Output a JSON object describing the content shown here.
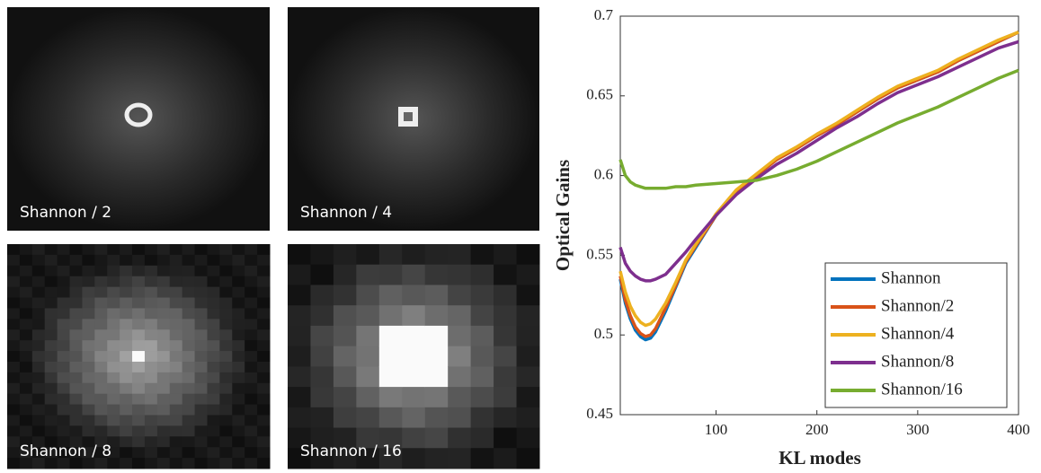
{
  "panels": [
    {
      "label": "Shannon / 2"
    },
    {
      "label": "Shannon / 4"
    },
    {
      "label": "Shannon / 8"
    },
    {
      "label": "Shannon / 16"
    }
  ],
  "chart_data": {
    "type": "line",
    "xlabel": "KL modes",
    "ylabel": "Optical Gains",
    "x": [
      5,
      10,
      15,
      20,
      25,
      30,
      35,
      40,
      50,
      60,
      70,
      80,
      100,
      120,
      140,
      160,
      180,
      200,
      220,
      240,
      260,
      280,
      300,
      320,
      340,
      360,
      380,
      400
    ],
    "xlim": [
      5,
      400
    ],
    "xticks": [
      100,
      200,
      300,
      400
    ],
    "ylim": [
      0.45,
      0.7
    ],
    "yticks": [
      0.45,
      0.5,
      0.55,
      0.6,
      0.65,
      0.7
    ],
    "legend": "lower right",
    "series": [
      {
        "name": "Shannon",
        "color": "#0072bd",
        "values": [
          0.535,
          0.52,
          0.51,
          0.503,
          0.499,
          0.497,
          0.498,
          0.502,
          0.515,
          0.53,
          0.545,
          0.555,
          0.575,
          0.59,
          0.6,
          0.61,
          0.617,
          0.625,
          0.632,
          0.64,
          0.648,
          0.655,
          0.66,
          0.665,
          0.672,
          0.678,
          0.684,
          0.69
        ]
      },
      {
        "name": "Shannon/2",
        "color": "#d95319",
        "values": [
          0.537,
          0.522,
          0.512,
          0.505,
          0.501,
          0.499,
          0.5,
          0.504,
          0.517,
          0.531,
          0.546,
          0.556,
          0.575,
          0.59,
          0.6,
          0.61,
          0.617,
          0.625,
          0.632,
          0.64,
          0.648,
          0.655,
          0.66,
          0.665,
          0.672,
          0.678,
          0.684,
          0.69
        ]
      },
      {
        "name": "Shannon/4",
        "color": "#edb120",
        "values": [
          0.54,
          0.527,
          0.518,
          0.512,
          0.508,
          0.506,
          0.507,
          0.51,
          0.52,
          0.533,
          0.547,
          0.557,
          0.576,
          0.591,
          0.601,
          0.611,
          0.618,
          0.626,
          0.633,
          0.641,
          0.649,
          0.656,
          0.661,
          0.666,
          0.673,
          0.679,
          0.685,
          0.69
        ]
      },
      {
        "name": "Shannon/8",
        "color": "#7e2f8e",
        "values": [
          0.555,
          0.545,
          0.54,
          0.537,
          0.535,
          0.534,
          0.534,
          0.535,
          0.538,
          0.545,
          0.552,
          0.56,
          0.575,
          0.588,
          0.598,
          0.607,
          0.614,
          0.622,
          0.63,
          0.637,
          0.645,
          0.652,
          0.657,
          0.662,
          0.668,
          0.674,
          0.68,
          0.684
        ]
      },
      {
        "name": "Shannon/16",
        "color": "#77ac30",
        "values": [
          0.61,
          0.6,
          0.596,
          0.594,
          0.593,
          0.592,
          0.592,
          0.592,
          0.592,
          0.593,
          0.593,
          0.594,
          0.595,
          0.596,
          0.597,
          0.6,
          0.604,
          0.609,
          0.615,
          0.621,
          0.627,
          0.633,
          0.638,
          0.643,
          0.649,
          0.655,
          0.661,
          0.666
        ]
      }
    ]
  }
}
